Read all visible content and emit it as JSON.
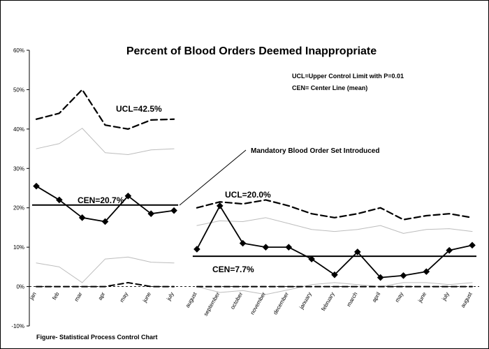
{
  "chart_data": {
    "type": "line",
    "title": "Percent of Blood Orders Deemed Inappropriate",
    "caption": "Figure- Statistical Process Control Chart",
    "legend_lines": [
      "UCL=Upper Control Limit with P=0.01",
      "CEN= Center Line (mean)"
    ],
    "annotations": {
      "intervention": "Mandatory Blood Order Set Introduced",
      "ucl_before": "UCL=42.5%",
      "cen_before": "CEN=20.7%",
      "ucl_after": "UCL=20.0%",
      "cen_after": "CEN=7.7%"
    },
    "y_ticks": [
      "-10%",
      "0%",
      "10%",
      "20%",
      "30%",
      "40%",
      "50%",
      "60%"
    ],
    "y_tick_values": [
      -10,
      0,
      10,
      20,
      30,
      40,
      50,
      60
    ],
    "ylim": [
      -10,
      60
    ],
    "categories": [
      "jan",
      "feb",
      "mar",
      "apr",
      "may",
      "june",
      "july",
      "august",
      "september",
      "october",
      "november",
      "december",
      "january",
      "february",
      "march",
      "april",
      "may",
      "june",
      "july",
      "august"
    ],
    "series": [
      {
        "values": [
          25.5,
          22.0,
          17.5,
          16.5,
          23.0,
          18.5,
          19.3,
          9.5,
          20.5,
          11.0,
          10.0,
          10.0,
          7.0,
          3.0,
          8.8,
          2.3,
          2.8,
          3.8,
          9.2,
          10.5
        ]
      }
    ],
    "phases": [
      {
        "start": 0,
        "end": 6,
        "cen": 20.7,
        "ucl": [
          42.5,
          44.0,
          50.0,
          41.0,
          40.0,
          42.3,
          42.5
        ],
        "upper_sigma": [
          35.0,
          36.3,
          40.2,
          34.0,
          33.5,
          34.7,
          35.0
        ],
        "lower_sigma": [
          6.0,
          5.0,
          1.0,
          7.0,
          7.5,
          6.2,
          6.0
        ],
        "lcl": [
          0.0,
          0.0,
          0.0,
          0.0,
          1.0,
          0.0,
          0.0
        ]
      },
      {
        "start": 7,
        "end": 19,
        "cen": 7.7,
        "ucl": [
          20.0,
          21.5,
          21.0,
          22.0,
          20.5,
          18.5,
          17.5,
          18.5,
          20.0,
          17.0,
          18.0,
          18.5,
          17.5
        ],
        "upper_sigma": [
          15.5,
          16.7,
          16.5,
          17.5,
          16.0,
          14.5,
          14.0,
          14.5,
          15.5,
          13.5,
          14.5,
          14.7,
          14.0
        ],
        "lower_sigma": [
          0.0,
          -1.5,
          -1.0,
          -2.0,
          -0.8,
          0.5,
          1.0,
          0.5,
          0.0,
          1.0,
          1.0,
          0.5,
          1.0
        ],
        "lcl": [
          0.0,
          0.0,
          0.0,
          0.0,
          0.0,
          0.0,
          0.0,
          0.0,
          0.0,
          0.0,
          0.0,
          0.0,
          0.0
        ]
      }
    ]
  }
}
